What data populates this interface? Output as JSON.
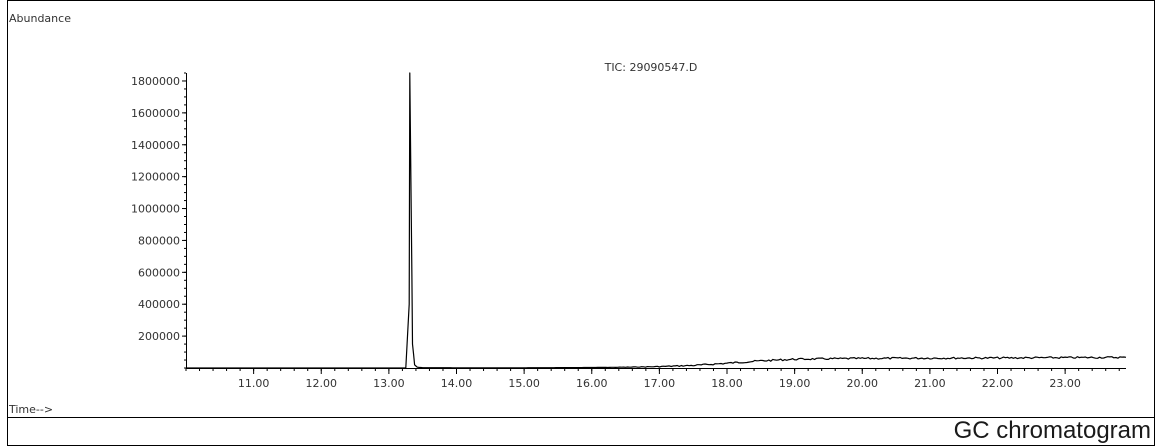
{
  "caption": "GC chromatogram",
  "chart_data": {
    "type": "line",
    "title": "TIC: 29090547.D",
    "xlabel": "Time-->",
    "ylabel": "Abundance",
    "xlim": [
      10.0,
      23.9
    ],
    "ylim": [
      0,
      1850000
    ],
    "xticks": [
      "11.00",
      "12.00",
      "13.00",
      "14.00",
      "15.00",
      "16.00",
      "17.00",
      "18.00",
      "19.00",
      "20.00",
      "21.00",
      "22.00",
      "23.00"
    ],
    "yticks": [
      "200000",
      "400000",
      "600000",
      "800000",
      "1000000",
      "1200000",
      "1400000",
      "1600000",
      "1800000"
    ],
    "grid": false,
    "line_color": "#000000",
    "series": [
      {
        "x": [
          10.0,
          11.0,
          12.0,
          13.0,
          13.25,
          13.3,
          13.31,
          13.33,
          13.35,
          13.38,
          13.42,
          13.5,
          14.0,
          15.0,
          16.0,
          16.5,
          17.0,
          17.5,
          18.0,
          18.5,
          19.0,
          19.5,
          20.0,
          21.0,
          22.0,
          23.0,
          23.9
        ],
        "y": [
          0,
          0,
          0,
          0,
          0,
          400000,
          1850000,
          1000000,
          150000,
          20000,
          5000,
          2000,
          1500,
          1500,
          3000,
          5000,
          9000,
          16000,
          30000,
          45000,
          55000,
          58000,
          60000,
          62000,
          63000,
          65000,
          67000
        ]
      }
    ]
  }
}
